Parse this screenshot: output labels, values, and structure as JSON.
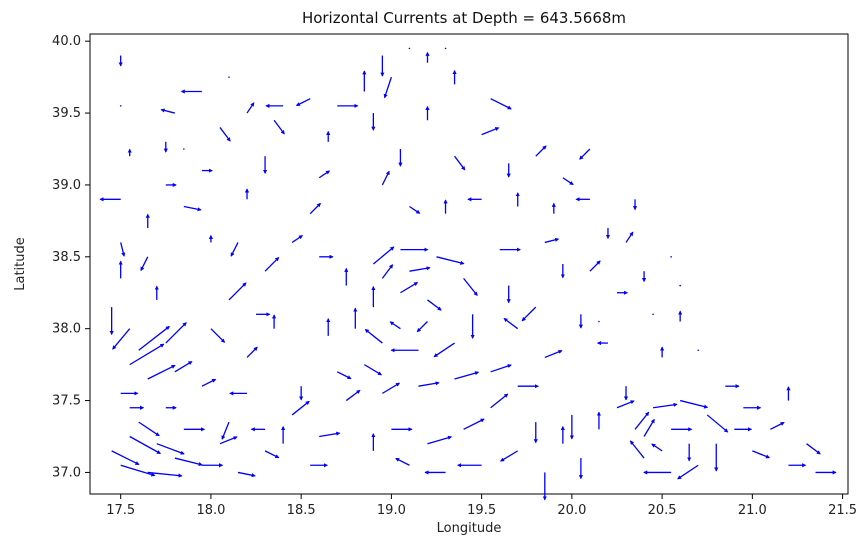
{
  "chart_data": {
    "type": "quiver",
    "title": "Horizontal Currents at Depth = 643.5668m",
    "xlabel": "Longitude",
    "ylabel": "Latitude",
    "xlim": [
      17.33,
      21.53
    ],
    "ylim": [
      36.85,
      40.05
    ],
    "x_ticks": [
      "17.5",
      "18.0",
      "18.5",
      "19.0",
      "19.5",
      "20.0",
      "20.5",
      "21.0",
      "21.5"
    ],
    "y_ticks": [
      "37.0",
      "37.5",
      "38.0",
      "38.5",
      "39.0",
      "39.5",
      "40.0"
    ],
    "grid": false,
    "arrow_color": "#0000ff",
    "vectors": [
      [
        17.45,
        37.15,
        0.08,
        -0.04
      ],
      [
        17.5,
        37.05,
        0.1,
        -0.03
      ],
      [
        17.55,
        37.25,
        0.09,
        -0.05
      ],
      [
        17.6,
        37.35,
        0.06,
        -0.04
      ],
      [
        17.65,
        37.0,
        0.1,
        -0.01
      ],
      [
        17.7,
        37.2,
        0.08,
        -0.03
      ],
      [
        17.8,
        37.1,
        0.08,
        -0.02
      ],
      [
        17.85,
        37.3,
        0.06,
        0.0
      ],
      [
        17.95,
        37.05,
        0.06,
        0.0
      ],
      [
        18.05,
        37.2,
        0.05,
        0.02
      ],
      [
        18.15,
        37.0,
        0.05,
        -0.01
      ],
      [
        18.3,
        37.15,
        0.04,
        -0.02
      ],
      [
        17.55,
        37.75,
        0.1,
        0.06
      ],
      [
        17.6,
        37.85,
        0.09,
        0.07
      ],
      [
        17.65,
        37.65,
        0.08,
        0.04
      ],
      [
        17.75,
        37.9,
        0.06,
        0.06
      ],
      [
        17.8,
        37.7,
        0.05,
        0.03
      ],
      [
        17.55,
        38.0,
        -0.05,
        -0.06
      ],
      [
        17.45,
        38.15,
        0.0,
        -0.08
      ],
      [
        17.5,
        38.35,
        0.0,
        0.05
      ],
      [
        17.5,
        38.6,
        0.01,
        -0.04
      ],
      [
        17.5,
        38.9,
        -0.06,
        0.0
      ],
      [
        17.55,
        39.2,
        0.0,
        0.02
      ],
      [
        17.5,
        39.55,
        0.0,
        0.0
      ],
      [
        17.5,
        39.9,
        0.0,
        -0.03
      ],
      [
        17.85,
        38.85,
        0.05,
        -0.01
      ],
      [
        17.95,
        39.1,
        0.03,
        0.0
      ],
      [
        18.0,
        38.6,
        0.0,
        0.02
      ],
      [
        18.1,
        38.2,
        0.05,
        0.05
      ],
      [
        18.0,
        38.0,
        0.04,
        -0.04
      ],
      [
        17.95,
        37.6,
        0.04,
        0.02
      ],
      [
        18.2,
        37.8,
        0.03,
        0.03
      ],
      [
        18.3,
        37.3,
        -0.04,
        0.0
      ],
      [
        18.4,
        37.2,
        0.0,
        0.05
      ],
      [
        18.45,
        37.4,
        0.05,
        0.04
      ],
      [
        18.55,
        37.05,
        0.05,
        0.0
      ],
      [
        18.6,
        37.25,
        0.06,
        0.01
      ],
      [
        18.3,
        38.4,
        0.04,
        0.04
      ],
      [
        18.35,
        38.0,
        0.0,
        0.04
      ],
      [
        18.45,
        38.6,
        0.03,
        0.02
      ],
      [
        18.55,
        38.8,
        0.03,
        0.03
      ],
      [
        18.6,
        39.05,
        0.03,
        0.02
      ],
      [
        18.65,
        39.3,
        0.0,
        0.03
      ],
      [
        18.7,
        39.55,
        0.06,
        0.0
      ],
      [
        18.4,
        39.55,
        -0.05,
        0.0
      ],
      [
        18.3,
        39.2,
        0.0,
        -0.05
      ],
      [
        18.2,
        39.5,
        0.02,
        0.03
      ],
      [
        18.1,
        39.75,
        0.0,
        0.0
      ],
      [
        17.95,
        39.65,
        -0.06,
        0.0
      ],
      [
        17.8,
        39.5,
        -0.04,
        0.01
      ],
      [
        17.75,
        39.3,
        0.0,
        -0.03
      ],
      [
        18.05,
        39.4,
        0.03,
        -0.04
      ],
      [
        18.75,
        38.3,
        0.0,
        0.05
      ],
      [
        18.8,
        38.0,
        0.0,
        0.06
      ],
      [
        18.85,
        37.75,
        0.05,
        -0.03
      ],
      [
        18.9,
        38.45,
        0.06,
        0.05
      ],
      [
        19.05,
        38.55,
        0.08,
        0.0
      ],
      [
        19.25,
        38.5,
        0.08,
        -0.02
      ],
      [
        19.4,
        38.35,
        0.04,
        -0.05
      ],
      [
        19.45,
        38.1,
        0.0,
        -0.07
      ],
      [
        19.35,
        37.9,
        -0.06,
        -0.04
      ],
      [
        19.15,
        37.85,
        -0.08,
        0.0
      ],
      [
        18.95,
        37.9,
        -0.05,
        0.04
      ],
      [
        18.9,
        38.15,
        0.0,
        0.06
      ],
      [
        19.05,
        38.25,
        0.05,
        0.03
      ],
      [
        19.2,
        38.2,
        0.04,
        -0.03
      ],
      [
        19.2,
        38.05,
        -0.03,
        -0.03
      ],
      [
        19.05,
        38.0,
        -0.03,
        0.02
      ],
      [
        19.1,
        38.4,
        0.06,
        0.01
      ],
      [
        18.95,
        38.35,
        0.03,
        0.04
      ],
      [
        19.6,
        38.55,
        0.06,
        0.0
      ],
      [
        19.65,
        38.3,
        0.0,
        -0.05
      ],
      [
        19.55,
        37.7,
        0.06,
        0.02
      ],
      [
        19.35,
        37.65,
        0.07,
        0.02
      ],
      [
        19.15,
        37.6,
        0.06,
        0.01
      ],
      [
        18.95,
        37.55,
        0.05,
        0.03
      ],
      [
        18.75,
        37.5,
        0.04,
        0.03
      ],
      [
        19.0,
        37.3,
        0.06,
        0.0
      ],
      [
        19.2,
        37.2,
        0.07,
        0.02
      ],
      [
        19.4,
        37.3,
        0.06,
        0.03
      ],
      [
        19.55,
        37.45,
        0.05,
        0.04
      ],
      [
        19.7,
        37.6,
        0.06,
        0.0
      ],
      [
        19.8,
        37.35,
        0.0,
        -0.06
      ],
      [
        19.7,
        37.15,
        -0.05,
        -0.03
      ],
      [
        19.5,
        37.05,
        -0.07,
        0.0
      ],
      [
        19.3,
        37.0,
        -0.06,
        0.0
      ],
      [
        19.1,
        37.05,
        -0.04,
        0.02
      ],
      [
        18.9,
        37.15,
        0.0,
        0.05
      ],
      [
        19.85,
        37.0,
        0.0,
        -0.08
      ],
      [
        19.95,
        37.2,
        0.0,
        0.05
      ],
      [
        20.0,
        37.4,
        0.0,
        -0.07
      ],
      [
        20.05,
        37.1,
        0.0,
        -0.06
      ],
      [
        20.15,
        37.3,
        0.0,
        0.05
      ],
      [
        20.25,
        37.45,
        0.05,
        0.02
      ],
      [
        20.35,
        37.3,
        0.04,
        0.05
      ],
      [
        20.45,
        37.45,
        0.07,
        0.01
      ],
      [
        20.6,
        37.5,
        0.08,
        -0.02
      ],
      [
        20.75,
        37.4,
        0.06,
        -0.05
      ],
      [
        20.8,
        37.2,
        0.0,
        -0.08
      ],
      [
        20.7,
        37.05,
        -0.06,
        -0.04
      ],
      [
        20.55,
        37.0,
        -0.08,
        0.0
      ],
      [
        20.4,
        37.1,
        -0.04,
        0.05
      ],
      [
        20.4,
        37.25,
        0.03,
        0.05
      ],
      [
        20.55,
        37.3,
        0.06,
        0.0
      ],
      [
        20.65,
        37.2,
        0.0,
        -0.05
      ],
      [
        20.5,
        37.15,
        -0.03,
        0.02
      ],
      [
        20.9,
        37.3,
        0.05,
        0.0
      ],
      [
        21.0,
        37.15,
        0.05,
        -0.02
      ],
      [
        21.1,
        37.3,
        0.04,
        0.02
      ],
      [
        21.2,
        37.05,
        0.05,
        0.0
      ],
      [
        21.3,
        37.2,
        0.04,
        -0.03
      ],
      [
        21.35,
        37.0,
        0.06,
        0.0
      ],
      [
        20.95,
        37.45,
        0.05,
        0.0
      ],
      [
        21.2,
        37.5,
        0.0,
        0.04
      ],
      [
        20.85,
        37.6,
        0.04,
        0.0
      ],
      [
        20.3,
        37.6,
        0.0,
        -0.04
      ],
      [
        20.5,
        37.8,
        0.0,
        0.03
      ],
      [
        20.6,
        38.05,
        0.0,
        0.03
      ],
      [
        20.2,
        37.9,
        -0.03,
        0.0
      ],
      [
        20.05,
        38.1,
        0.0,
        -0.04
      ],
      [
        20.1,
        38.4,
        0.03,
        0.03
      ],
      [
        20.2,
        38.7,
        0.0,
        -0.03
      ],
      [
        20.3,
        38.6,
        0.02,
        0.03
      ],
      [
        20.35,
        38.9,
        0.0,
        -0.03
      ],
      [
        20.1,
        38.9,
        -0.04,
        0.0
      ],
      [
        19.9,
        38.8,
        0.0,
        0.03
      ],
      [
        19.95,
        38.45,
        0.0,
        -0.04
      ],
      [
        19.8,
        38.15,
        -0.04,
        -0.04
      ],
      [
        19.7,
        38.0,
        -0.04,
        0.03
      ],
      [
        19.85,
        37.8,
        0.05,
        0.02
      ],
      [
        19.85,
        38.6,
        0.04,
        0.01
      ],
      [
        19.7,
        38.85,
        0.0,
        0.04
      ],
      [
        19.5,
        38.9,
        -0.04,
        0.0
      ],
      [
        19.3,
        38.8,
        0.0,
        0.04
      ],
      [
        19.1,
        38.85,
        0.03,
        -0.02
      ],
      [
        18.95,
        39.0,
        0.02,
        0.04
      ],
      [
        19.05,
        39.25,
        0.0,
        -0.05
      ],
      [
        19.2,
        39.45,
        0.0,
        0.04
      ],
      [
        19.35,
        39.2,
        0.03,
        -0.04
      ],
      [
        19.5,
        39.35,
        0.05,
        0.02
      ],
      [
        19.65,
        39.15,
        0.0,
        -0.04
      ],
      [
        19.8,
        39.2,
        0.03,
        0.03
      ],
      [
        19.95,
        39.05,
        0.03,
        -0.02
      ],
      [
        20.1,
        39.25,
        -0.03,
        -0.03
      ],
      [
        19.55,
        39.6,
        0.06,
        -0.03
      ],
      [
        19.35,
        39.7,
        0.0,
        0.04
      ],
      [
        19.2,
        39.85,
        0.0,
        0.03
      ],
      [
        19.0,
        39.75,
        -0.02,
        -0.06
      ],
      [
        18.9,
        39.5,
        0.0,
        -0.05
      ],
      [
        18.85,
        39.65,
        0.0,
        0.06
      ],
      [
        18.95,
        39.9,
        0.0,
        -0.06
      ],
      [
        19.1,
        39.95,
        0.0,
        0.0
      ],
      [
        19.3,
        39.95,
        0.0,
        0.0
      ],
      [
        18.55,
        39.6,
        -0.04,
        -0.02
      ],
      [
        18.35,
        39.45,
        0.03,
        -0.04
      ],
      [
        17.65,
        38.5,
        -0.02,
        -0.04
      ],
      [
        17.7,
        38.2,
        0.0,
        0.04
      ],
      [
        17.65,
        38.7,
        0.0,
        0.04
      ],
      [
        17.75,
        39.0,
        0.03,
        0.0
      ],
      [
        17.85,
        39.25,
        0.0,
        0.0
      ],
      [
        18.2,
        38.9,
        0.0,
        0.03
      ],
      [
        18.15,
        38.6,
        -0.02,
        -0.04
      ],
      [
        18.25,
        38.1,
        0.04,
        0.0
      ],
      [
        18.6,
        38.5,
        0.04,
        0.0
      ],
      [
        18.65,
        37.95,
        0.0,
        0.05
      ],
      [
        18.7,
        37.7,
        0.04,
        -0.02
      ],
      [
        18.5,
        37.6,
        0.0,
        -0.04
      ],
      [
        18.2,
        37.55,
        -0.05,
        0.0
      ],
      [
        18.1,
        37.35,
        -0.02,
        -0.05
      ],
      [
        17.75,
        37.45,
        0.03,
        0.0
      ],
      [
        17.5,
        37.55,
        0.05,
        0.0
      ],
      [
        17.55,
        37.45,
        0.04,
        0.0
      ],
      [
        20.25,
        38.25,
        0.03,
        0.0
      ],
      [
        20.4,
        38.4,
        0.0,
        -0.03
      ],
      [
        20.45,
        38.1,
        0.0,
        0.0
      ],
      [
        20.6,
        38.3,
        0.0,
        0.0
      ],
      [
        20.15,
        38.05,
        0.0,
        0.0
      ],
      [
        20.55,
        38.5,
        0.0,
        0.0
      ],
      [
        20.7,
        37.85,
        0.0,
        0.0
      ]
    ]
  }
}
